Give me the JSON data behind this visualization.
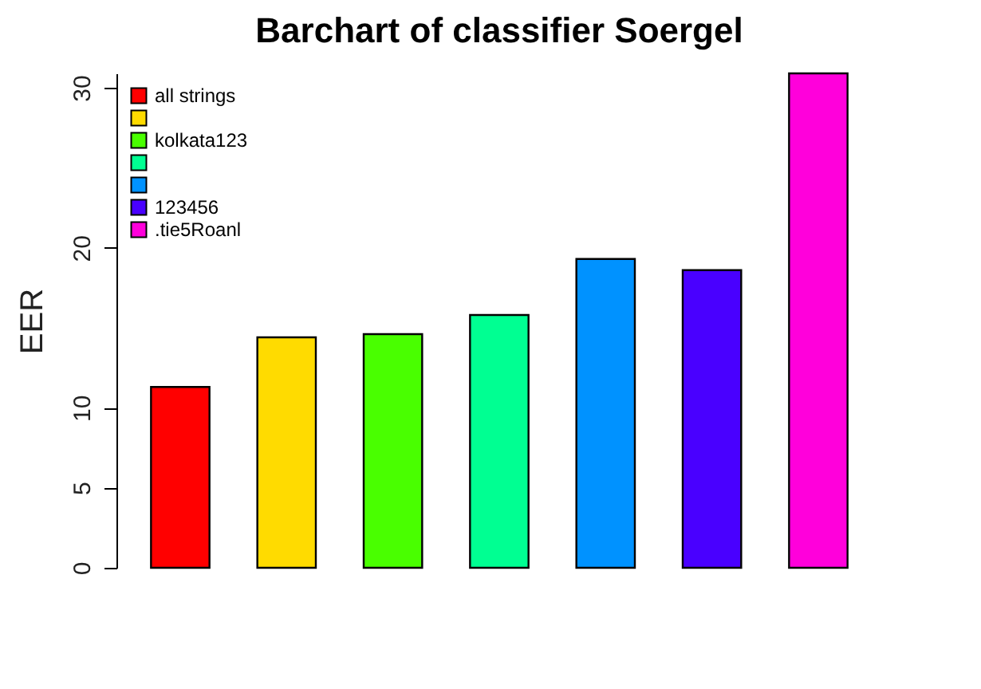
{
  "chart_data": {
    "type": "bar",
    "title": "Barchart of classifier Soergel",
    "ylabel": "EER",
    "categories": [
      null,
      null,
      null,
      null,
      null,
      null,
      null
    ],
    "series": [
      {
        "name": "all strings",
        "color": "#ff0000",
        "values": [
          11.3,
          null,
          null,
          null,
          null,
          null,
          null
        ]
      },
      {
        "color": "#ffdb00",
        "values": [
          null,
          14.4,
          null,
          null,
          null,
          null,
          null
        ]
      },
      {
        "name": "kolkata123",
        "color": "#49ff00",
        "values": [
          null,
          null,
          14.6,
          null,
          null,
          null,
          null
        ]
      },
      {
        "color": "#00ff92",
        "values": [
          null,
          null,
          null,
          15.8,
          null,
          null,
          null
        ]
      },
      {
        "color": "#0092ff",
        "values": [
          null,
          null,
          null,
          null,
          19.3,
          null,
          null
        ]
      },
      {
        "name": "123456",
        "color": "#4900ff",
        "values": [
          null,
          null,
          null,
          null,
          null,
          18.6,
          null
        ]
      },
      {
        "name": ".tie5Roanl",
        "color": "#ff00db",
        "values": [
          null,
          null,
          null,
          null,
          null,
          null,
          30.9
        ]
      }
    ],
    "ylim": [
      0,
      30.9
    ],
    "yticks": [
      0,
      5,
      10,
      20,
      30
    ],
    "stacked": true,
    "grid": false,
    "legend": "top left",
    "tick_labels": "y"
  }
}
